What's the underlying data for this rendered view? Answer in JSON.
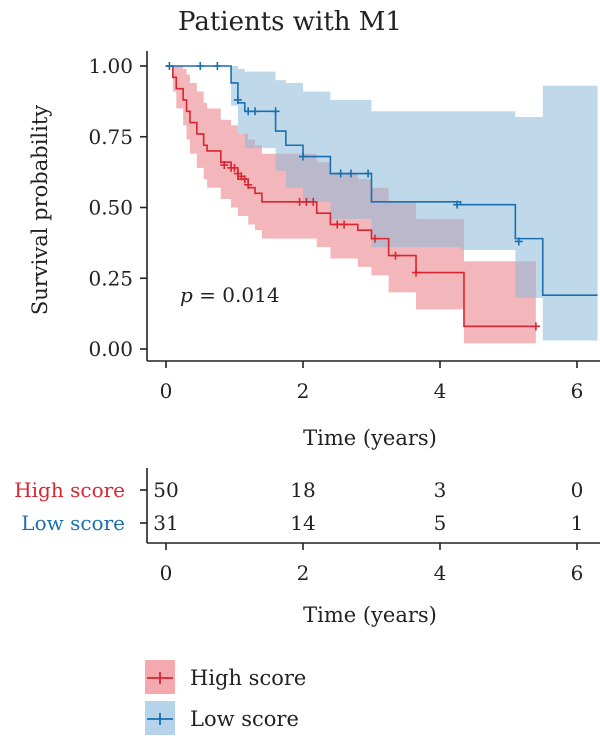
{
  "chart_data": {
    "type": "line",
    "subtype": "kaplan-meier",
    "title": "Patients with M1",
    "xlabel": "Time (years)",
    "ylabel": "Survival probability",
    "xlim": [
      -0.2,
      6.3
    ],
    "ylim": [
      0,
      1
    ],
    "x_ticks": [
      "0",
      "2",
      "4",
      "6"
    ],
    "y_ticks": [
      "0.00",
      "0.25",
      "0.50",
      "0.75",
      "1.00"
    ],
    "annotation_p_label": "p",
    "annotation_p_value": "= 0.014",
    "series": [
      {
        "name": "High score",
        "color": "#d9252f",
        "fill": "#e97b84",
        "steps": [
          [
            0.0,
            1.0
          ],
          [
            0.1,
            0.96
          ],
          [
            0.15,
            0.92
          ],
          [
            0.25,
            0.88
          ],
          [
            0.3,
            0.84
          ],
          [
            0.35,
            0.8
          ],
          [
            0.45,
            0.76
          ],
          [
            0.55,
            0.72
          ],
          [
            0.6,
            0.7
          ],
          [
            0.8,
            0.66
          ],
          [
            0.95,
            0.64
          ],
          [
            1.05,
            0.6
          ],
          [
            1.2,
            0.57
          ],
          [
            1.3,
            0.55
          ],
          [
            1.4,
            0.52
          ],
          [
            2.2,
            0.48
          ],
          [
            2.4,
            0.44
          ],
          [
            2.8,
            0.42
          ],
          [
            3.0,
            0.39
          ],
          [
            3.25,
            0.33
          ],
          [
            3.65,
            0.27
          ],
          [
            4.35,
            0.08
          ],
          [
            5.4,
            0.08
          ]
        ],
        "upper": [
          [
            0.0,
            1.0
          ],
          [
            0.1,
            1.0
          ],
          [
            0.15,
            1.0
          ],
          [
            0.25,
            0.99
          ],
          [
            0.3,
            0.97
          ],
          [
            0.35,
            0.94
          ],
          [
            0.45,
            0.91
          ],
          [
            0.55,
            0.87
          ],
          [
            0.6,
            0.85
          ],
          [
            0.8,
            0.81
          ],
          [
            0.95,
            0.79
          ],
          [
            1.05,
            0.76
          ],
          [
            1.2,
            0.74
          ],
          [
            1.3,
            0.72
          ],
          [
            1.4,
            0.69
          ],
          [
            2.2,
            0.66
          ],
          [
            2.4,
            0.62
          ],
          [
            2.8,
            0.6
          ],
          [
            3.0,
            0.57
          ],
          [
            3.25,
            0.52
          ],
          [
            3.65,
            0.46
          ],
          [
            4.35,
            0.31
          ],
          [
            5.4,
            0.31
          ]
        ],
        "lower": [
          [
            0.0,
            1.0
          ],
          [
            0.1,
            0.91
          ],
          [
            0.15,
            0.85
          ],
          [
            0.25,
            0.79
          ],
          [
            0.3,
            0.74
          ],
          [
            0.35,
            0.69
          ],
          [
            0.45,
            0.64
          ],
          [
            0.55,
            0.6
          ],
          [
            0.6,
            0.57
          ],
          [
            0.8,
            0.53
          ],
          [
            0.95,
            0.5
          ],
          [
            1.05,
            0.47
          ],
          [
            1.2,
            0.44
          ],
          [
            1.3,
            0.42
          ],
          [
            1.4,
            0.39
          ],
          [
            2.2,
            0.36
          ],
          [
            2.4,
            0.32
          ],
          [
            2.8,
            0.29
          ],
          [
            3.0,
            0.26
          ],
          [
            3.25,
            0.2
          ],
          [
            3.65,
            0.14
          ],
          [
            4.35,
            0.02
          ],
          [
            5.4,
            0.02
          ]
        ],
        "censors": [
          [
            0.85,
            0.65
          ],
          [
            0.95,
            0.64
          ],
          [
            1.0,
            0.64
          ],
          [
            1.05,
            0.62
          ],
          [
            1.1,
            0.61
          ],
          [
            1.15,
            0.6
          ],
          [
            1.2,
            0.58
          ],
          [
            1.95,
            0.52
          ],
          [
            2.05,
            0.52
          ],
          [
            2.15,
            0.52
          ],
          [
            2.5,
            0.44
          ],
          [
            2.6,
            0.44
          ],
          [
            3.05,
            0.39
          ],
          [
            3.35,
            0.33
          ],
          [
            3.65,
            0.27
          ],
          [
            5.4,
            0.08
          ]
        ]
      },
      {
        "name": "Low score",
        "color": "#1a6fb0",
        "fill": "#8dbad9",
        "steps": [
          [
            0.0,
            1.0
          ],
          [
            0.95,
            0.94
          ],
          [
            1.05,
            0.87
          ],
          [
            1.15,
            0.84
          ],
          [
            1.6,
            0.77
          ],
          [
            1.75,
            0.72
          ],
          [
            2.0,
            0.68
          ],
          [
            2.4,
            0.62
          ],
          [
            3.0,
            0.52
          ],
          [
            4.3,
            0.51
          ],
          [
            5.1,
            0.39
          ],
          [
            5.5,
            0.19
          ],
          [
            6.3,
            0.19
          ]
        ],
        "upper": [
          [
            0.0,
            1.0
          ],
          [
            0.95,
            1.0
          ],
          [
            1.05,
            0.99
          ],
          [
            1.15,
            0.98
          ],
          [
            1.6,
            0.95
          ],
          [
            1.75,
            0.94
          ],
          [
            2.0,
            0.91
          ],
          [
            2.4,
            0.88
          ],
          [
            3.0,
            0.84
          ],
          [
            4.3,
            0.84
          ],
          [
            5.1,
            0.82
          ],
          [
            5.5,
            0.93
          ],
          [
            6.3,
            0.93
          ]
        ],
        "lower": [
          [
            0.0,
            1.0
          ],
          [
            0.95,
            0.86
          ],
          [
            1.05,
            0.76
          ],
          [
            1.15,
            0.71
          ],
          [
            1.6,
            0.63
          ],
          [
            1.75,
            0.57
          ],
          [
            2.0,
            0.52
          ],
          [
            2.4,
            0.46
          ],
          [
            3.0,
            0.36
          ],
          [
            4.3,
            0.35
          ],
          [
            5.1,
            0.18
          ],
          [
            5.5,
            0.03
          ],
          [
            6.3,
            0.03
          ]
        ],
        "censors": [
          [
            0.05,
            1.0
          ],
          [
            0.5,
            1.0
          ],
          [
            0.75,
            1.0
          ],
          [
            1.05,
            0.88
          ],
          [
            1.2,
            0.84
          ],
          [
            1.3,
            0.84
          ],
          [
            1.6,
            0.84
          ],
          [
            2.0,
            0.68
          ],
          [
            2.55,
            0.62
          ],
          [
            2.7,
            0.62
          ],
          [
            2.95,
            0.62
          ],
          [
            4.25,
            0.51
          ],
          [
            5.15,
            0.38
          ]
        ]
      }
    ],
    "risk_table": {
      "xlabel": "Time (years)",
      "x_ticks": [
        "0",
        "2",
        "4",
        "6"
      ],
      "rows": [
        {
          "name": "High score",
          "color": "#d9252f",
          "values": [
            "50",
            "18",
            "3",
            "0"
          ]
        },
        {
          "name": "Low score",
          "color": "#1a6fb0",
          "values": [
            "31",
            "14",
            "5",
            "1"
          ]
        }
      ]
    },
    "legend": [
      {
        "label": "High score",
        "color": "#d9252f",
        "fill": "#f3a9ae"
      },
      {
        "label": "Low score",
        "color": "#1a6fb0",
        "fill": "#b5d3ea"
      }
    ],
    "legend_position": "bottom"
  }
}
